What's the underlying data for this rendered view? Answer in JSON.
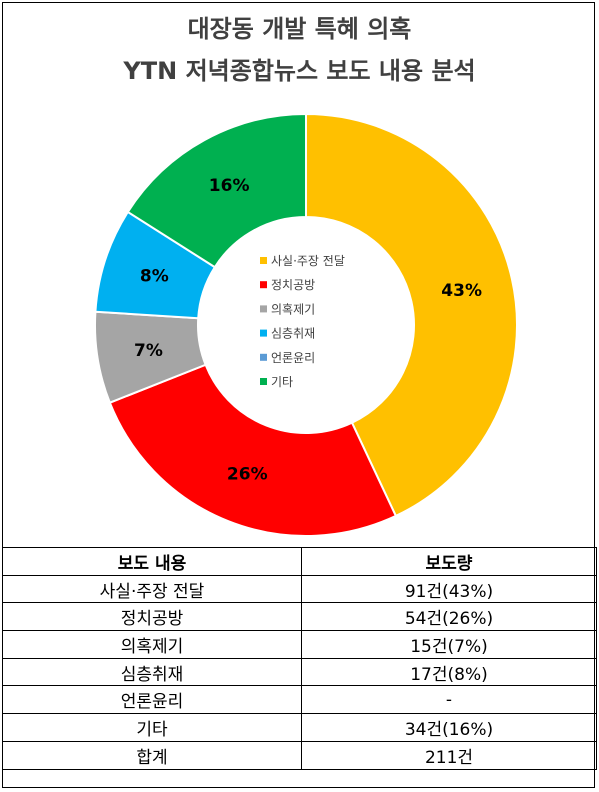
{
  "title_line1": "대장동 개발 특혜 의혹",
  "title_line2": "YTN 저녁종합뉴스 보도 내용 분석",
  "chart_data": {
    "type": "pie",
    "donut": true,
    "categories": [
      "사실·주장 전달",
      "정치공방",
      "의혹제기",
      "심층취재",
      "언론윤리",
      "기타"
    ],
    "values": [
      43,
      26,
      7,
      8,
      0,
      16
    ],
    "labels": [
      "43%",
      "26%",
      "7%",
      "8%",
      "",
      "16%"
    ],
    "colors": [
      "#FFC000",
      "#FF0000",
      "#A5A5A5",
      "#00B0F0",
      "#5B9BD5",
      "#00B050"
    ],
    "legend_position": "center"
  },
  "table": {
    "headers": [
      "보도 내용",
      "보도량"
    ],
    "rows": [
      [
        "사실·주장 전달",
        "91건(43%)"
      ],
      [
        "정치공방",
        "54건(26%)"
      ],
      [
        "의혹제기",
        "15건(7%)"
      ],
      [
        "심층취재",
        "17건(8%)"
      ],
      [
        "언론윤리",
        "-"
      ],
      [
        "기타",
        "34건(16%)"
      ],
      [
        "합계",
        "211건"
      ]
    ]
  }
}
